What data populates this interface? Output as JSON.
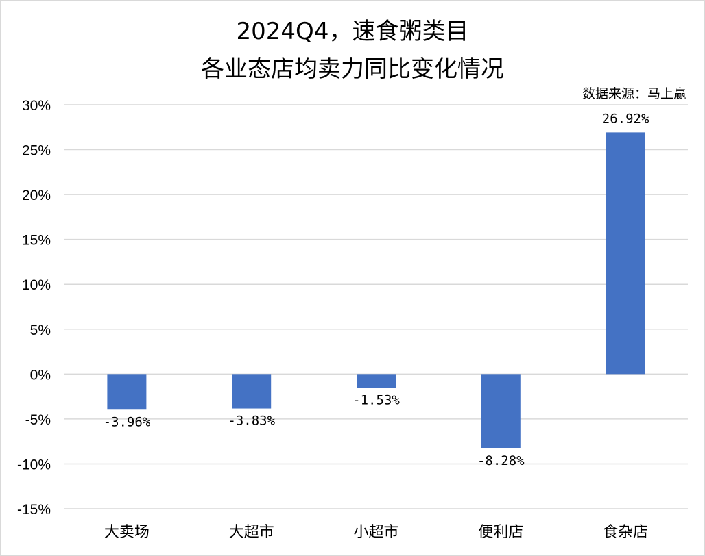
{
  "chart_data": {
    "type": "bar",
    "title": [
      "2024Q4，速食粥类目",
      "各业态店均卖力同比变化情况"
    ],
    "source": "数据来源：马上赢",
    "categories": [
      "大卖场",
      "大超市",
      "小超市",
      "便利店",
      "食杂店"
    ],
    "values": [
      -3.96,
      -3.83,
      -1.53,
      -8.28,
      26.92
    ],
    "data_labels": [
      "-3.96%",
      "-3.83%",
      "-1.53%",
      "-8.28%",
      "26.92%"
    ],
    "ylim": [
      -15,
      30
    ],
    "yticks": [
      30,
      25,
      20,
      15,
      10,
      5,
      0,
      -5,
      -10,
      -15
    ],
    "ytick_labels": [
      "30%",
      "25%",
      "20%",
      "15%",
      "10%",
      "5%",
      "0%",
      "-5%",
      "-10%",
      "-15%"
    ],
    "bar_color": "#4472C4",
    "grid": true,
    "legend": "none"
  }
}
